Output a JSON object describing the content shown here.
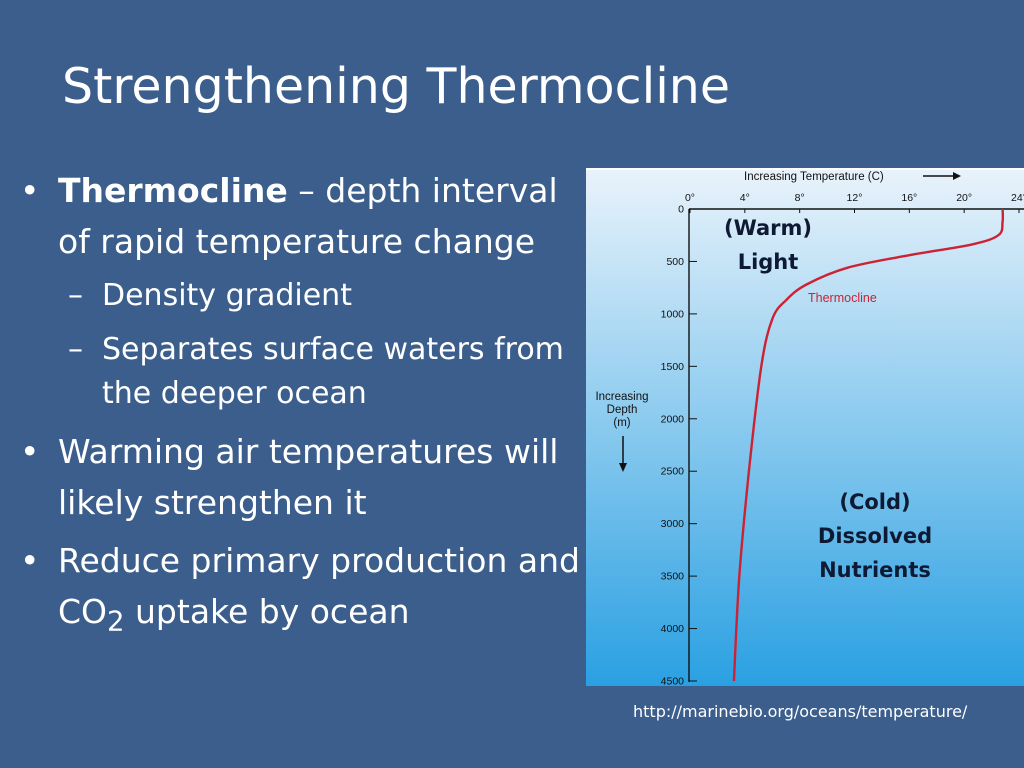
{
  "slide": {
    "title": "Strengthening Thermocline",
    "bullets": [
      {
        "term": "Thermocline",
        "rest": " – depth interval of rapid temperature change",
        "subs": [
          "Density gradient",
          "Separates surface waters from the deeper ocean"
        ]
      },
      {
        "text": "Warming air temperatures will likely strengthen it"
      },
      {
        "pre": "Reduce primary production and CO",
        "sub": "2",
        "post": " uptake by ocean"
      }
    ],
    "bullet_glyph": "•",
    "dash_glyph": "–",
    "source": "http://marinebio.org/oceans/temperature/"
  },
  "chart_data": {
    "type": "line",
    "title": "Increasing Temperature (C)",
    "xlabel": "Increasing Temperature (C)",
    "ylabel": "Increasing Depth (m)",
    "ylabel_lines": [
      "Increasing",
      "Depth",
      "(m)"
    ],
    "x_ticks": [
      "0°",
      "4°",
      "8°",
      "12°",
      "16°",
      "20°",
      "24°"
    ],
    "y_ticks": [
      "0",
      "500",
      "1000",
      "1500",
      "2000",
      "2500",
      "3000",
      "3500",
      "4000",
      "4500"
    ],
    "xlim": [
      0,
      24
    ],
    "ylim": [
      0,
      4500
    ],
    "y_inverted": true,
    "series": [
      {
        "name": "Thermocline",
        "color": "#cc2233",
        "points": [
          {
            "x": 22.8,
            "y": 0
          },
          {
            "x": 22.8,
            "y": 120
          },
          {
            "x": 22.5,
            "y": 250
          },
          {
            "x": 20.5,
            "y": 340
          },
          {
            "x": 16.0,
            "y": 440
          },
          {
            "x": 11.5,
            "y": 560
          },
          {
            "x": 8.5,
            "y": 720
          },
          {
            "x": 7.0,
            "y": 870
          },
          {
            "x": 6.0,
            "y": 1050
          },
          {
            "x": 5.2,
            "y": 1500
          },
          {
            "x": 4.3,
            "y": 2500
          },
          {
            "x": 3.6,
            "y": 3500
          },
          {
            "x": 3.2,
            "y": 4500
          }
        ]
      }
    ],
    "annotations": {
      "warm": [
        "(Warm)",
        "Light"
      ],
      "cold": [
        "(Cold)",
        "Dissolved",
        "Nutrients"
      ]
    },
    "colors": {
      "background_top": "#e9f3fb",
      "background_bottom": "#2aa0e2",
      "axis": "#111111",
      "line": "#cc2233"
    },
    "grid": false
  }
}
